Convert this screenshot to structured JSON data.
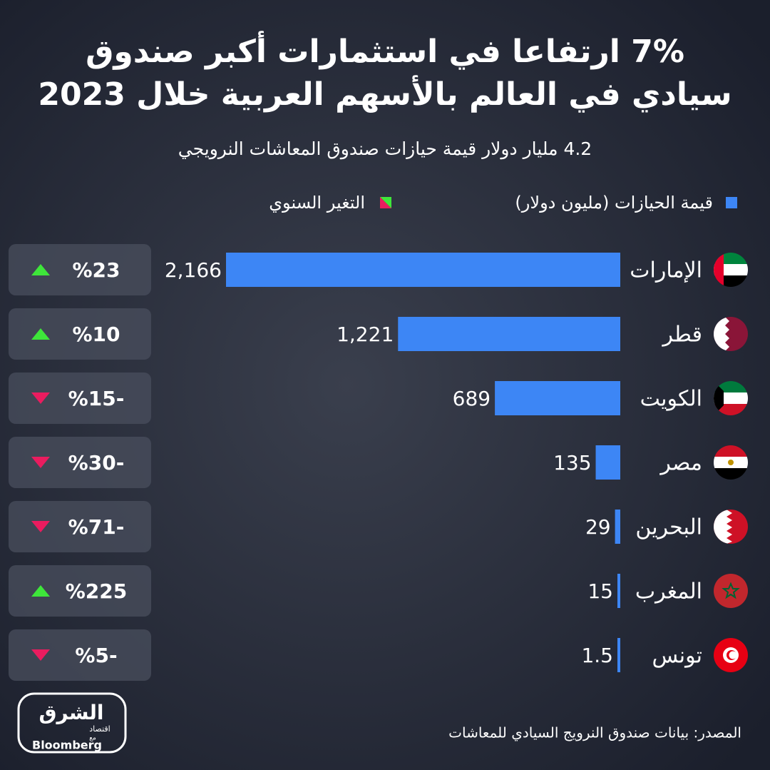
{
  "chart_data": {
    "type": "bar",
    "title_lines": [
      "7% ارتفاعا في استثمارات أكبر صندوق",
      "سيادي في العالم بالأسهم العربية خلال 2023"
    ],
    "subtitle": "4.2 مليار دولار قيمة حيازات صندوق المعاشات النرويجي",
    "categories": [
      "الإمارات",
      "قطر",
      "الكويت",
      "مصر",
      "البحرين",
      "المغرب",
      "تونس"
    ],
    "series": [
      {
        "name": "قيمة الحيازات (مليون دولار)",
        "color": "#3d86f5",
        "values": [
          2166,
          1221,
          689,
          135,
          29,
          15,
          1.5
        ],
        "value_labels": [
          "2,166",
          "1,221",
          "689",
          "135",
          "29",
          "15",
          "1.5"
        ]
      },
      {
        "name": "التغير السنوي",
        "color_up": "#3ee63a",
        "color_down": "#ea1c5f",
        "values": [
          23,
          10,
          -15,
          -30,
          -71,
          225,
          -5
        ],
        "value_labels": [
          "%23",
          "%10",
          "%15-",
          "%30-",
          "%71-",
          "%225",
          "%5-"
        ]
      }
    ],
    "source": "المصدر: بيانات صندوق النرويج السيادي للمعاشات",
    "logo": {
      "brand": "الشرق",
      "section": "اقتصاد",
      "with": "مع",
      "partner": "Bloomberg"
    }
  }
}
